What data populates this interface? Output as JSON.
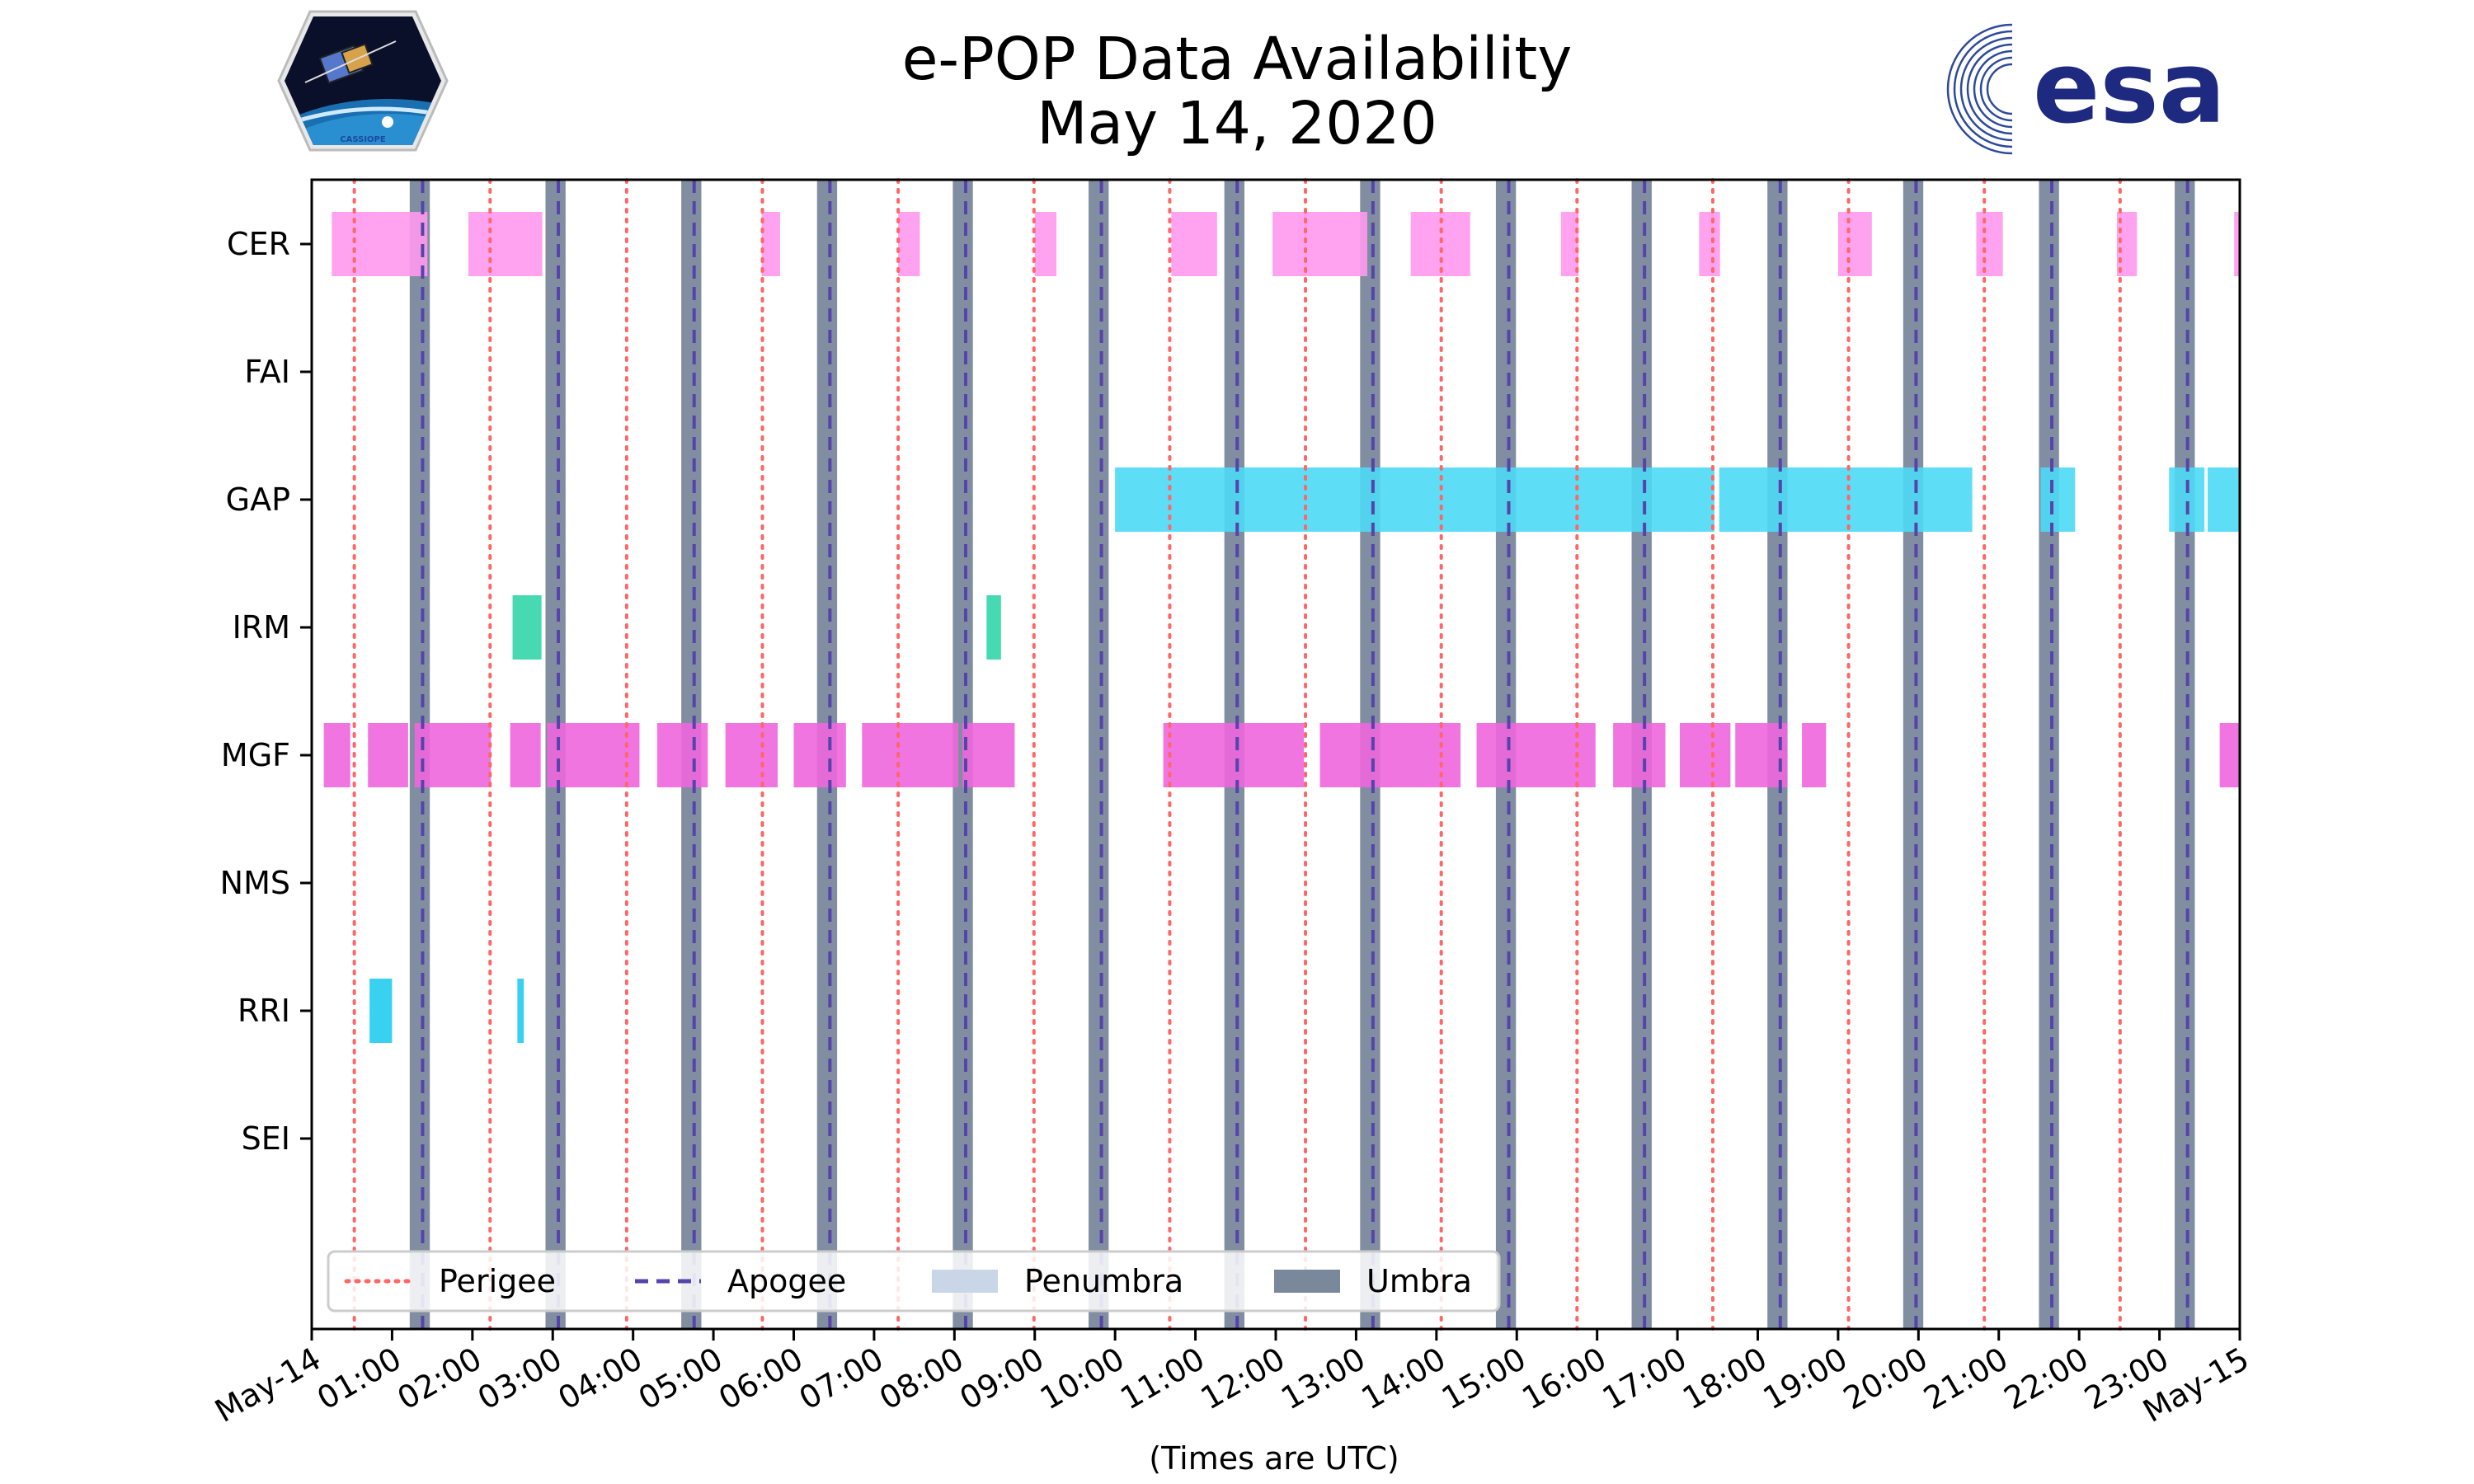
{
  "chart_data": {
    "type": "timeline",
    "title": "e-POP Data Availability",
    "subtitle": "May 14, 2020",
    "xlabel": "(Times are UTC)",
    "xlim": [
      0,
      24
    ],
    "x_tick_labels": [
      "May-14",
      "01:00",
      "02:00",
      "03:00",
      "04:00",
      "05:00",
      "06:00",
      "07:00",
      "08:00",
      "09:00",
      "10:00",
      "11:00",
      "12:00",
      "13:00",
      "14:00",
      "15:00",
      "16:00",
      "17:00",
      "18:00",
      "19:00",
      "20:00",
      "21:00",
      "22:00",
      "23:00",
      "May-15"
    ],
    "instruments": [
      "CER",
      "FAI",
      "GAP",
      "IRM",
      "MGF",
      "NMS",
      "RRI",
      "SEI"
    ],
    "perigee_hours": [
      0.53,
      2.22,
      3.92,
      5.61,
      7.3,
      8.99,
      10.68,
      12.37,
      14.06,
      15.75,
      17.44,
      19.13,
      20.82,
      22.51
    ],
    "apogee_hours": [
      1.38,
      3.07,
      4.76,
      6.45,
      8.14,
      9.83,
      11.52,
      13.21,
      14.9,
      16.59,
      18.28,
      19.97,
      21.66,
      23.35
    ],
    "umbra_intervals": [
      [
        1.22,
        1.47
      ],
      [
        2.91,
        3.16
      ],
      [
        4.6,
        4.85
      ],
      [
        6.29,
        6.54
      ],
      [
        7.98,
        8.23
      ],
      [
        9.67,
        9.92
      ],
      [
        11.36,
        11.61
      ],
      [
        13.05,
        13.3
      ],
      [
        14.74,
        14.99
      ],
      [
        16.43,
        16.68
      ],
      [
        18.12,
        18.37
      ],
      [
        19.81,
        20.06
      ],
      [
        21.5,
        21.75
      ],
      [
        23.19,
        23.44
      ]
    ],
    "penumbra_intervals": [],
    "series": [
      {
        "name": "CER",
        "color": "#ff99ee",
        "intervals": [
          [
            0.25,
            1.44
          ],
          [
            1.95,
            2.87
          ],
          [
            5.6,
            5.83
          ],
          [
            7.3,
            7.57
          ],
          [
            9.0,
            9.27
          ],
          [
            10.7,
            11.27
          ],
          [
            11.96,
            13.14
          ],
          [
            13.68,
            14.42
          ],
          [
            15.55,
            15.77
          ],
          [
            17.27,
            17.53
          ],
          [
            19.0,
            19.42
          ],
          [
            20.72,
            21.05
          ],
          [
            22.47,
            22.72
          ],
          [
            23.93,
            24.0
          ]
        ]
      },
      {
        "name": "FAI",
        "color": "#ff99ee",
        "intervals": []
      },
      {
        "name": "GAP",
        "color": "#4dd9f5",
        "intervals": [
          [
            10.0,
            17.46
          ],
          [
            17.52,
            20.67
          ],
          [
            21.52,
            21.95
          ],
          [
            23.12,
            23.56
          ],
          [
            23.6,
            24.0
          ]
        ]
      },
      {
        "name": "IRM",
        "color": "#33d6aa",
        "intervals": [
          [
            2.5,
            2.86
          ],
          [
            8.4,
            8.58
          ]
        ]
      },
      {
        "name": "MGF",
        "color": "#ee66dd",
        "intervals": [
          [
            0.15,
            0.48
          ],
          [
            0.7,
            1.2
          ],
          [
            1.28,
            2.23
          ],
          [
            2.47,
            2.85
          ],
          [
            2.93,
            4.08
          ],
          [
            4.3,
            4.93
          ],
          [
            5.15,
            5.8
          ],
          [
            6.0,
            6.65
          ],
          [
            6.85,
            8.05
          ],
          [
            8.1,
            8.75
          ],
          [
            10.6,
            12.35
          ],
          [
            12.55,
            14.3
          ],
          [
            14.5,
            15.98
          ],
          [
            16.2,
            16.85
          ],
          [
            17.03,
            17.66
          ],
          [
            17.72,
            18.37
          ],
          [
            18.55,
            18.85
          ],
          [
            23.75,
            24.0
          ]
        ]
      },
      {
        "name": "NMS",
        "color": "#ee66dd",
        "intervals": []
      },
      {
        "name": "RRI",
        "color": "#22ccee",
        "intervals": [
          [
            0.72,
            1.0
          ],
          [
            2.56,
            2.64
          ]
        ]
      },
      {
        "name": "SEI",
        "color": "#22ccee",
        "intervals": []
      }
    ],
    "legend": {
      "placement": "lower-left",
      "entries": [
        {
          "label": "Perigee",
          "color": "#ff6666",
          "style": "dotted"
        },
        {
          "label": "Apogee",
          "color": "#5544aa",
          "style": "dashed"
        },
        {
          "label": "Penumbra",
          "color": "#c9d6e8",
          "style": "patch"
        },
        {
          "label": "Umbra",
          "color": "#7a889c",
          "style": "patch"
        }
      ]
    }
  },
  "logos": {
    "left_text": "CASSIOPE",
    "right_text": "esa"
  }
}
